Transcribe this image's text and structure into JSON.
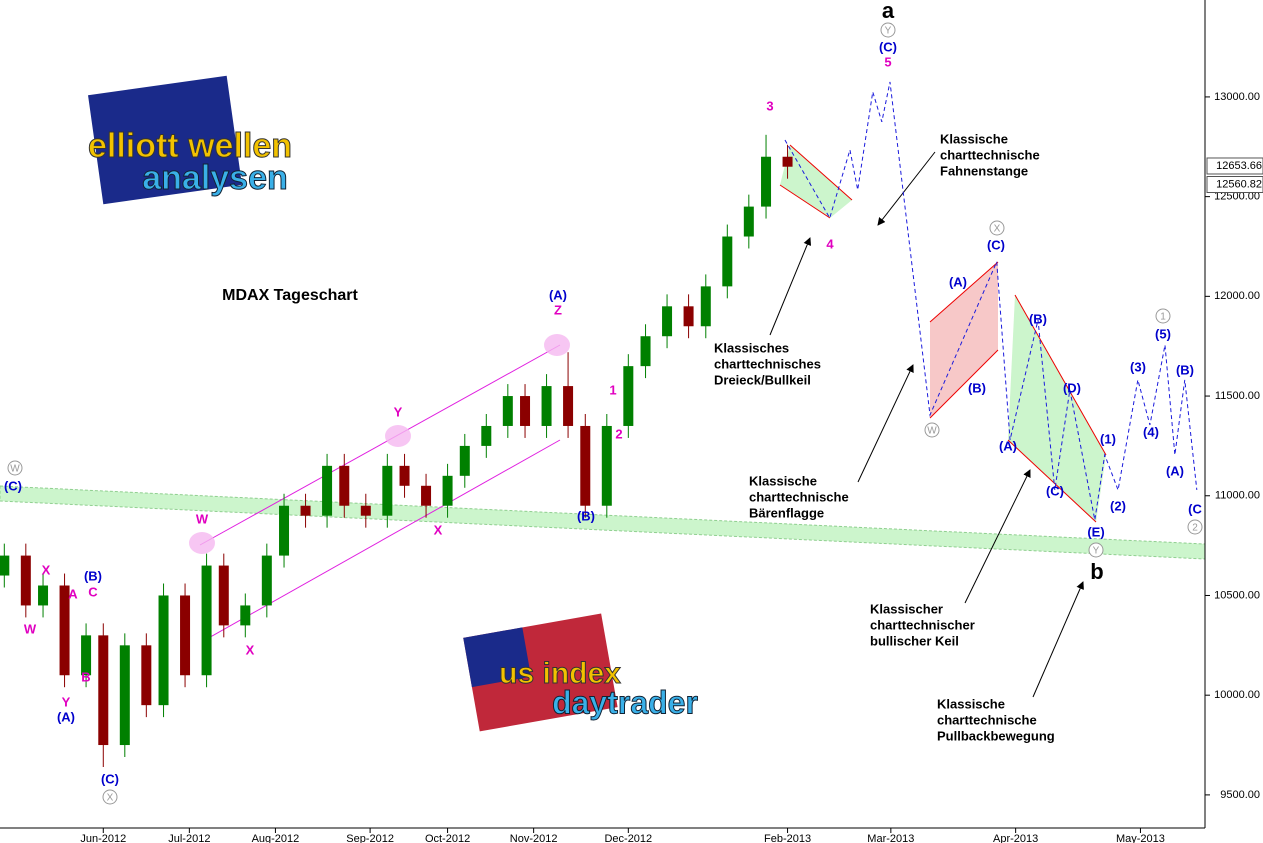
{
  "chart_data": {
    "type": "candlestick",
    "title": "MDAX Tageschart",
    "xlim": [
      0,
      280
    ],
    "ylim": [
      9334,
      13486
    ],
    "xticks": [
      {
        "value": 24,
        "label": "Jun-2012"
      },
      {
        "value": 44,
        "label": "Jul-2012"
      },
      {
        "value": 64,
        "label": "Aug-2012"
      },
      {
        "value": 86,
        "label": "Sep-2012"
      },
      {
        "value": 104,
        "label": "Oct-2012"
      },
      {
        "value": 124,
        "label": "Nov-2012"
      },
      {
        "value": 146,
        "label": "Dec-2012"
      },
      {
        "value": 183,
        "label": "Feb-2013"
      },
      {
        "value": 207,
        "label": "Mar-2013"
      },
      {
        "value": 236,
        "label": "Apr-2013"
      },
      {
        "value": 265,
        "label": "May-2013"
      }
    ],
    "yticks": [
      {
        "value": 9500,
        "label": "9500.00"
      },
      {
        "value": 10000,
        "label": "10000.00"
      },
      {
        "value": 10500,
        "label": "10500.00"
      },
      {
        "value": 11000,
        "label": "11000.00"
      },
      {
        "value": 11500,
        "label": "11500.00"
      },
      {
        "value": 12000,
        "label": "12000.00"
      },
      {
        "value": 12500,
        "label": "12500.00"
      },
      {
        "value": 13000,
        "label": "13000.00"
      }
    ],
    "price_markers": [
      12653.66,
      12560.82
    ],
    "up_color": "#008000",
    "down_color": "#8b0000",
    "x": [
      1,
      6,
      10,
      15,
      20,
      24,
      29,
      34,
      38,
      43,
      48,
      52,
      57,
      62,
      66,
      71,
      76,
      80,
      85,
      90,
      94,
      99,
      104,
      108,
      113,
      118,
      122,
      127,
      132,
      136,
      141,
      146,
      150,
      155,
      160,
      164,
      169,
      174,
      178,
      183
    ],
    "open": [
      10600,
      10700,
      10450,
      10550,
      10100,
      10300,
      9750,
      10250,
      9950,
      10500,
      10100,
      10650,
      10350,
      10450,
      10700,
      10950,
      10900,
      11150,
      10950,
      10900,
      11150,
      11050,
      10950,
      11100,
      11250,
      11350,
      11500,
      11350,
      11550,
      11350,
      10950,
      11350,
      11650,
      11800,
      11950,
      11850,
      12050,
      12300,
      12450,
      12700
    ],
    "high": [
      10760,
      10760,
      10610,
      10610,
      10360,
      10360,
      10310,
      10310,
      10560,
      10560,
      10710,
      10710,
      10510,
      10760,
      11010,
      11010,
      11210,
      11210,
      11010,
      11210,
      11210,
      11110,
      11160,
      11310,
      11410,
      11560,
      11560,
      11610,
      11720,
      11410,
      11410,
      11710,
      11860,
      12010,
      12010,
      12110,
      12360,
      12510,
      12810,
      12760
    ],
    "low": [
      10540,
      10390,
      10390,
      10040,
      10040,
      9640,
      9690,
      9890,
      9890,
      10040,
      10040,
      10290,
      10290,
      10390,
      10640,
      10840,
      10840,
      10890,
      10840,
      10840,
      10990,
      10890,
      10890,
      11040,
      11190,
      11290,
      11290,
      11290,
      11290,
      10890,
      10890,
      11290,
      11590,
      11740,
      11790,
      11790,
      11990,
      12240,
      12390,
      12590
    ],
    "close": [
      10700,
      10450,
      10550,
      10100,
      10300,
      9750,
      10250,
      9950,
      10500,
      10100,
      10650,
      10350,
      10450,
      10700,
      10950,
      10900,
      11150,
      10950,
      10900,
      11150,
      11050,
      10950,
      11100,
      11250,
      11350,
      11500,
      11350,
      11550,
      11350,
      10950,
      11350,
      11650,
      11800,
      11950,
      11850,
      12050,
      12300,
      12450,
      12700,
      12650
    ],
    "projection": {
      "color": "#1a1adc",
      "x": [
        182.4,
        192.8,
        197.5,
        199.3,
        202.8,
        204.9,
        206.8,
        216.1,
        231.6,
        234.7,
        241.2,
        245.1,
        248.6,
        254.4,
        256.7,
        259.8,
        264.4,
        267.2,
        270.7,
        273,
        275.3,
        278.1
      ],
      "values": [
        12784,
        12393,
        12734,
        12534,
        13025,
        12875,
        13075,
        11405,
        12173,
        11280,
        11882,
        11029,
        11531,
        10879,
        11205,
        11029,
        11581,
        11355,
        11756,
        11205,
        11581,
        11029
      ]
    },
    "annotations": [
      "a",
      "(C)",
      "5",
      "3",
      "4",
      "(A)",
      "Z",
      "Y",
      "W",
      "X",
      "X",
      "(B)",
      "1",
      "2",
      "(C)",
      "(C)",
      "(A)",
      "(B)",
      "(B)",
      "(D)",
      "(A)",
      "(C)",
      "(E)",
      "(1)",
      "(2)",
      "(3)",
      "(4)",
      "(5)",
      "(B)",
      "(A)",
      "(C",
      "b",
      "(A)",
      "Y",
      "B",
      "A",
      "C",
      "(B)",
      "X",
      "W",
      "(C)"
    ],
    "circled": [
      "Y",
      "X",
      "W",
      "Y",
      "1",
      "2",
      "W",
      "X"
    ],
    "notes": [
      [
        "Klassische",
        "charttechnische",
        "Fahnenstange"
      ],
      [
        "Klassisches",
        "charttechnisches",
        "Dreieck/Bullkeil"
      ],
      [
        "Klassische",
        "charttechnische",
        "Bärenflagge"
      ],
      [
        "Klassischer",
        "charttechnischer",
        "bullischer Keil"
      ],
      [
        "Klassische",
        "charttechnische",
        "Pullbackbewegung"
      ]
    ],
    "logos": [
      [
        "elliott",
        "wellen",
        "analysen"
      ],
      [
        "us",
        "index",
        "daytrader"
      ]
    ]
  }
}
